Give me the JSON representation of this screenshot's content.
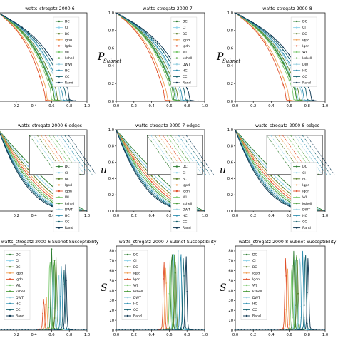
{
  "methods": [
    {
      "name": "DC",
      "color": "#2e7d32"
    },
    {
      "name": "CI",
      "color": "#8fd3ea"
    },
    {
      "name": "BC",
      "color": "#5b7f2a"
    },
    {
      "name": "lgpd",
      "color": "#f0a35a"
    },
    {
      "name": "lgdn",
      "color": "#e0502a"
    },
    {
      "name": "WL",
      "color": "#7bc96f"
    },
    {
      "name": "kshell",
      "color": "#4a9b3a"
    },
    {
      "name": "DWT",
      "color": "#9ad1e0"
    },
    {
      "name": "HC",
      "color": "#2f8fb0"
    },
    {
      "name": "CC",
      "color": "#14606e"
    },
    {
      "name": "Rand",
      "color": "#0c3550"
    }
  ],
  "xticks": [
    "0.0",
    "0.2",
    "0.4",
    "0.6",
    "0.8",
    "1.0"
  ],
  "row_labels": {
    "subnet": "P",
    "subnet_sub": "Subnet",
    "edges": "u",
    "susc": "S"
  },
  "chart_data": [
    {
      "type": "line",
      "title": "watts_strogatz-2000-6",
      "row": "subnet",
      "ylim": [
        0,
        1
      ],
      "yticks": [
        "0.0",
        "0.2",
        "0.4",
        "0.6",
        "0.8",
        "1.0"
      ],
      "collapse_x": {
        "DC": 0.62,
        "CI": 0.64,
        "BC": 0.66,
        "lgpd": 0.55,
        "lgdn": 0.52,
        "WL": 0.6,
        "kshell": 0.63,
        "DWT": 0.7,
        "HC": 0.72,
        "CC": 0.76,
        "Rand": 0.8
      }
    },
    {
      "type": "line",
      "title": "watts_strogatz-2000-7",
      "row": "subnet",
      "ylim": [
        0,
        1
      ],
      "yticks": [
        "0.0",
        "0.2",
        "0.4",
        "0.6",
        "0.8",
        "1.0"
      ],
      "collapse_x": {
        "DC": 0.65,
        "CI": 0.67,
        "BC": 0.69,
        "lgpd": 0.57,
        "lgdn": 0.54,
        "WL": 0.63,
        "kshell": 0.66,
        "DWT": 0.72,
        "HC": 0.74,
        "CC": 0.78,
        "Rand": 0.82
      }
    },
    {
      "type": "line",
      "title": "watts_strogatz-2000-8",
      "row": "subnet",
      "ylim": [
        0,
        1
      ],
      "yticks": [
        "0.0",
        "0.2",
        "0.4",
        "0.6",
        "0.8",
        "1.0"
      ],
      "collapse_x": {
        "DC": 0.67,
        "CI": 0.69,
        "BC": 0.71,
        "lgpd": 0.59,
        "lgdn": 0.56,
        "WL": 0.65,
        "kshell": 0.68,
        "DWT": 0.74,
        "HC": 0.76,
        "CC": 0.8,
        "Rand": 0.84
      }
    },
    {
      "type": "line",
      "title": "watts_strogatz-2000-6 edges",
      "row": "edges",
      "ylim": [
        0,
        1
      ],
      "yticks": [
        "0.0",
        "0.2",
        "0.4",
        "0.6",
        "0.8",
        "1.0"
      ]
    },
    {
      "type": "line",
      "title": "watts_strogatz-2000-7 edges",
      "row": "edges",
      "ylim": [
        0,
        1
      ],
      "yticks": [
        "0.0",
        "0.2",
        "0.4",
        "0.6",
        "0.8",
        "1.0"
      ]
    },
    {
      "type": "line",
      "title": "watts_strogatz-2000-8 edges",
      "row": "edges",
      "ylim": [
        0,
        1
      ],
      "yticks": [
        "0.0",
        "0.2",
        "0.4",
        "0.6",
        "0.8",
        "1.0"
      ]
    },
    {
      "type": "line",
      "title": "watts_strogatz-2000-6 Subnet Susceptibility",
      "row": "susc",
      "ylim": [
        0,
        85
      ],
      "yticks": [
        "0",
        "10",
        "20",
        "30",
        "40",
        "50",
        "60",
        "70",
        "80"
      ],
      "peaks": {
        "DC": [
          0.6,
          80
        ],
        "CI": [
          0.62,
          70
        ],
        "BC": [
          0.65,
          72
        ],
        "lgpd": [
          0.54,
          32
        ],
        "lgdn": [
          0.51,
          30
        ],
        "WL": [
          0.58,
          72
        ],
        "kshell": [
          0.63,
          74
        ],
        "DWT": [
          0.68,
          58
        ],
        "HC": [
          0.71,
          64
        ],
        "CC": [
          0.74,
          60
        ],
        "Rand": [
          0.76,
          66
        ]
      }
    },
    {
      "type": "line",
      "title": "watts_strogatz-2000-7 Subnet Susceptibility",
      "row": "susc",
      "ylim": [
        0,
        85
      ],
      "yticks": [
        "0",
        "10",
        "20",
        "30",
        "40",
        "50",
        "60",
        "70",
        "80"
      ],
      "peaks": {
        "DC": [
          0.63,
          80
        ],
        "CI": [
          0.65,
          75
        ],
        "BC": [
          0.67,
          72
        ],
        "lgpd": [
          0.56,
          62
        ],
        "lgdn": [
          0.54,
          68
        ],
        "WL": [
          0.61,
          70
        ],
        "kshell": [
          0.66,
          76
        ],
        "DWT": [
          0.7,
          78
        ],
        "HC": [
          0.73,
          80
        ],
        "CC": [
          0.76,
          72
        ],
        "Rand": [
          0.79,
          74
        ]
      }
    },
    {
      "type": "line",
      "title": "watts_strogatz-2000-8 Subnet Susceptibility",
      "row": "susc",
      "ylim": [
        0,
        85
      ],
      "yticks": [
        "0",
        "10",
        "20",
        "30",
        "40",
        "50",
        "60",
        "70",
        "80"
      ],
      "peaks": {
        "DC": [
          0.65,
          78
        ],
        "CI": [
          0.67,
          74
        ],
        "BC": [
          0.69,
          70
        ],
        "lgpd": [
          0.58,
          65
        ],
        "lgdn": [
          0.56,
          72
        ],
        "WL": [
          0.63,
          68
        ],
        "kshell": [
          0.68,
          80
        ],
        "DWT": [
          0.72,
          76
        ],
        "HC": [
          0.75,
          78
        ],
        "CC": [
          0.78,
          80
        ],
        "Rand": [
          0.81,
          72
        ]
      }
    }
  ]
}
